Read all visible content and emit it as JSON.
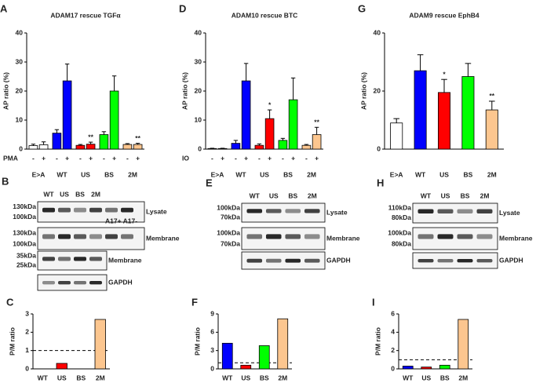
{
  "chart_data": [
    {
      "type": "grouped_bar",
      "panel": "A",
      "title": "ADAM17 rescue TGFα",
      "ylabel": "AP ratio (%)",
      "ylim": [
        0,
        40
      ],
      "yticks": [
        0,
        10,
        20,
        30,
        40
      ],
      "treatment": "PMA",
      "categories": [
        "E>A",
        "WT",
        "US",
        "BS",
        "2M"
      ],
      "colors": [
        "#ffffff",
        "#0000ff",
        "#ff0000",
        "#00ff00",
        "#fcc68f"
      ],
      "series": [
        {
          "name": "-",
          "values": [
            1.2,
            5.5,
            1.3,
            5,
            1.6
          ],
          "errors": [
            0.5,
            1.2,
            0.3,
            1,
            0.3
          ],
          "significance": [
            null,
            null,
            null,
            null,
            null
          ]
        },
        {
          "name": "+",
          "values": [
            1.5,
            23.5,
            1.7,
            20,
            1.6
          ],
          "errors": [
            1,
            5.8,
            0.7,
            5.2,
            0.4
          ],
          "significance": [
            null,
            null,
            "**",
            null,
            "**"
          ]
        }
      ]
    },
    {
      "type": "grouped_bar",
      "panel": "D",
      "title": "ADAM10 rescue BTC",
      "ylabel": "AP ratio (%)",
      "ylim": [
        0,
        40
      ],
      "yticks": [
        0,
        10,
        20,
        30,
        40
      ],
      "treatment": "IO",
      "categories": [
        "E>A",
        "WT",
        "US",
        "BS",
        "2M"
      ],
      "colors": [
        "#ffffff",
        "#0000ff",
        "#ff0000",
        "#00ff00",
        "#fcc68f"
      ],
      "series": [
        {
          "name": "-",
          "values": [
            0.2,
            2,
            1.3,
            3,
            1.3
          ],
          "errors": [
            0.1,
            1,
            0.5,
            0.7,
            0.3
          ],
          "significance": [
            null,
            null,
            null,
            null,
            null
          ]
        },
        {
          "name": "+",
          "values": [
            0.2,
            23.5,
            10.5,
            17,
            5
          ],
          "errors": [
            0.1,
            6,
            3,
            7.5,
            2.5
          ],
          "significance": [
            null,
            null,
            "*",
            null,
            "**"
          ]
        }
      ]
    },
    {
      "type": "bar",
      "panel": "G",
      "title": "ADAM9 rescue EphB4",
      "ylabel": "AP ratio (%)",
      "ylim": [
        0,
        40
      ],
      "yticks": [
        0,
        20,
        40
      ],
      "categories": [
        "E>A",
        "WT",
        "US",
        "BS",
        "2M"
      ],
      "colors": [
        "#ffffff",
        "#0000ff",
        "#ff0000",
        "#00ff00",
        "#fcc68f"
      ],
      "values": [
        9,
        27,
        19.5,
        25,
        13.5
      ],
      "errors": [
        1.5,
        5.5,
        4.5,
        4.5,
        3
      ],
      "significance": [
        null,
        null,
        "*",
        null,
        "**"
      ]
    },
    {
      "type": "bar",
      "panel": "C",
      "ylabel": "P/M ratio",
      "ylim": [
        0,
        3
      ],
      "yticks": [
        0,
        1,
        2,
        3
      ],
      "ref_line": 1,
      "categories": [
        "WT",
        "US",
        "BS",
        "2M"
      ],
      "colors": [
        "#0000ff",
        "#ff0000",
        "#00ff00",
        "#fcc68f"
      ],
      "values": [
        0,
        0.3,
        0,
        2.7
      ]
    },
    {
      "type": "bar",
      "panel": "F",
      "ylabel": "P/M ratio",
      "ylim": [
        0,
        9
      ],
      "yticks": [
        0,
        3,
        6,
        9
      ],
      "ref_line": 1,
      "categories": [
        "WT",
        "US",
        "BS",
        "2M"
      ],
      "colors": [
        "#0000ff",
        "#ff0000",
        "#00ff00",
        "#fcc68f"
      ],
      "values": [
        4.2,
        0.6,
        3.8,
        8.2
      ]
    },
    {
      "type": "bar",
      "panel": "I",
      "ylabel": "P/M ratio",
      "ylim": [
        0,
        6
      ],
      "yticks": [
        0,
        2,
        4,
        6
      ],
      "ref_line": 1,
      "categories": [
        "WT",
        "US",
        "BS",
        "2M"
      ],
      "colors": [
        "#0000ff",
        "#ff0000",
        "#00ff00",
        "#fcc68f"
      ],
      "values": [
        0.3,
        0.2,
        0.4,
        5.4
      ]
    }
  ],
  "blots": [
    {
      "panel": "B",
      "lanes": [
        "WT",
        "US",
        "BS",
        "2M"
      ],
      "extra": "A17+ A17-",
      "rows": [
        {
          "label": "Lysate",
          "markers": [
            "130kDa",
            "100kDa"
          ]
        },
        {
          "label": "Membrane",
          "markers": [
            "130kDa",
            "100kDa"
          ]
        },
        {
          "label": "Membrane",
          "markers": [
            "35kDa",
            "25kDa"
          ]
        },
        {
          "label": "GAPDH",
          "markers": []
        }
      ]
    },
    {
      "panel": "E",
      "lanes": [
        "WT",
        "US",
        "BS",
        "2M"
      ],
      "rows": [
        {
          "label": "Lysate",
          "markers": [
            "100kDa",
            "70kDa"
          ]
        },
        {
          "label": "Membrane",
          "markers": [
            "100kDa",
            "70kDa"
          ]
        },
        {
          "label": "GAPDH",
          "markers": []
        }
      ]
    },
    {
      "panel": "H",
      "lanes": [
        "WT",
        "US",
        "BS",
        "2M"
      ],
      "rows": [
        {
          "label": "Lysate",
          "markers": [
            "110kDa",
            "80kDa"
          ]
        },
        {
          "label": "Membrane",
          "markers": [
            "100kDa",
            "80kDa"
          ]
        },
        {
          "label": "GAPDH",
          "markers": []
        }
      ]
    }
  ]
}
